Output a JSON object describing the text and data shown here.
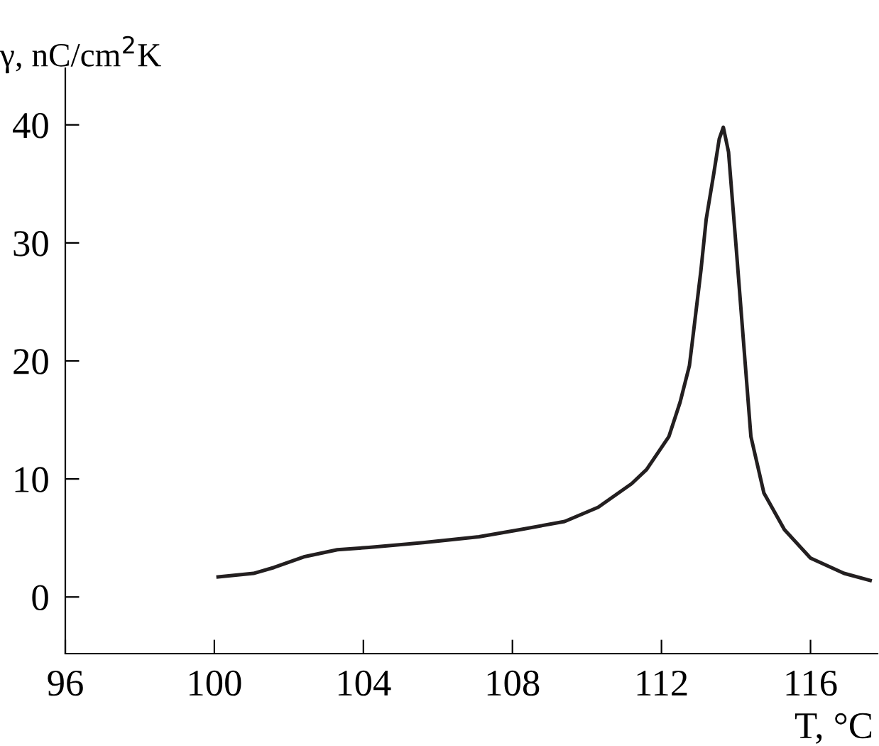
{
  "chart_data": {
    "type": "line",
    "xlabel": "T, °C",
    "ylabel": "γ, nC/cm$^{2}$K",
    "xlim": [
      96,
      117.8
    ],
    "xticks": [
      96,
      100,
      104,
      108,
      112,
      116
    ],
    "ylim": [
      -4.8,
      44.8
    ],
    "yticks": [
      0,
      10,
      20,
      30,
      40
    ],
    "grid": false,
    "marker": "none",
    "line_style": "solid",
    "series": [
      {
        "color": "#231f20",
        "x": [
          100.1,
          101.05,
          101.6,
          102.4,
          103.3,
          104.15,
          105.6,
          107.1,
          108.2,
          109.4,
          110.3,
          111.2,
          111.6,
          112.2,
          112.5,
          112.75,
          112.9,
          113.06,
          113.2,
          113.4,
          113.55,
          113.66,
          113.8,
          114.0,
          114.2,
          114.4,
          114.75,
          115.3,
          116.0,
          116.9,
          117.6
        ],
        "values": [
          1.7,
          2.0,
          2.5,
          3.4,
          4.0,
          4.2,
          4.6,
          5.1,
          5.7,
          6.4,
          7.6,
          9.6,
          10.8,
          13.6,
          16.5,
          19.6,
          23.5,
          27.7,
          32.0,
          35.8,
          38.8,
          39.8,
          37.7,
          29.8,
          21.7,
          13.6,
          8.8,
          5.7,
          3.3,
          2.0,
          1.4
        ]
      }
    ]
  }
}
